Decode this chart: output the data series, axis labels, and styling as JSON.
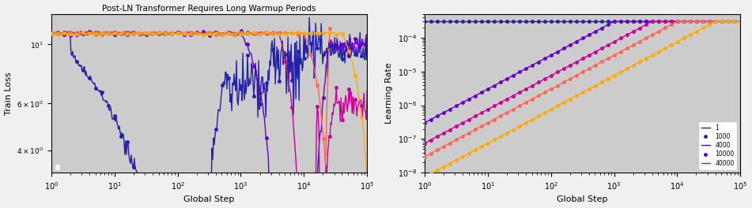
{
  "title": "Post-LN Transformer Requires Long Warmup Periods",
  "warmup_values": [
    1,
    1000,
    4000,
    10000,
    40000
  ],
  "colors": [
    "#2222aa",
    "#6600cc",
    "#cc0099",
    "#ff6655",
    "#ffaa00"
  ],
  "max_lr": 0.0003,
  "total_steps": 100000,
  "left_ylabel": "Train Loss",
  "right_ylabel": "Learning Rate",
  "xlabel": "Global Step",
  "bg_color": "#cccccc",
  "fig_bg": "#f0f0f0",
  "markersize": 2.5,
  "linewidth": 1.0
}
